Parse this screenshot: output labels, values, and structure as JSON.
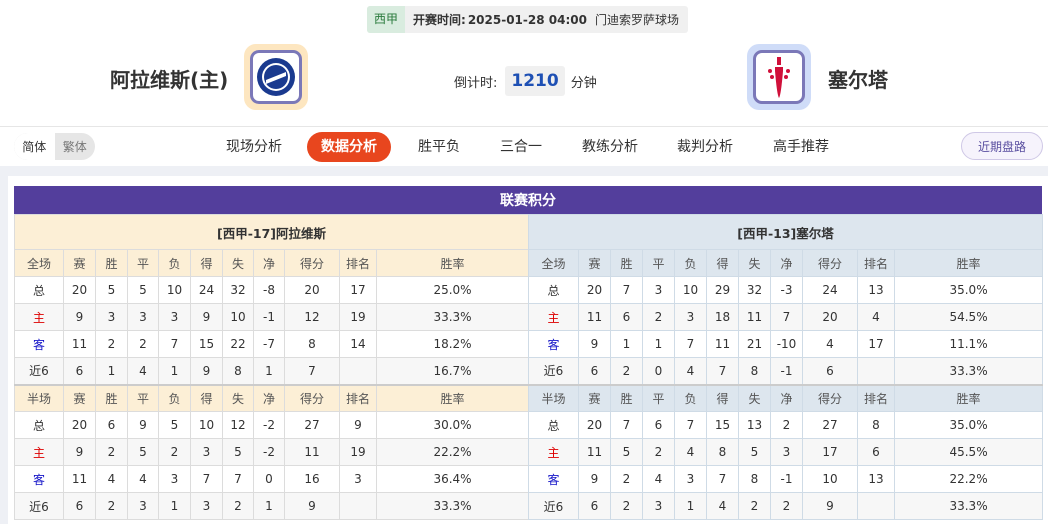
{
  "match": {
    "league": "西甲",
    "kickoff_label": "开赛时间:",
    "kickoff": "2025-01-28 04:00",
    "stadium": "门迪索罗萨球场",
    "home": "阿拉维斯(主)",
    "away": "塞尔塔",
    "countdown_label": "倒计时:",
    "countdown": "1210",
    "countdown_unit": "分钟"
  },
  "lang": {
    "simplified": "简体",
    "traditional": "繁体"
  },
  "tabs": [
    "现场分析",
    "数据分析",
    "胜平负",
    "三合一",
    "教练分析",
    "裁判分析",
    "高手推荐"
  ],
  "active_tab": "数据分析",
  "recent_button": "近期盘路",
  "standings": {
    "title": "联赛积分",
    "headers_full": [
      "全场",
      "赛",
      "胜",
      "平",
      "负",
      "得",
      "失",
      "净",
      "得分",
      "排名",
      "胜率"
    ],
    "headers_half": [
      "半场",
      "赛",
      "胜",
      "平",
      "负",
      "得",
      "失",
      "净",
      "得分",
      "排名",
      "胜率"
    ],
    "home": {
      "team": "[西甲-17]阿拉维斯",
      "full": [
        [
          "总",
          "20",
          "5",
          "5",
          "10",
          "24",
          "32",
          "-8",
          "20",
          "17",
          "25.0%"
        ],
        [
          "主",
          "9",
          "3",
          "3",
          "3",
          "9",
          "10",
          "-1",
          "12",
          "19",
          "33.3%"
        ],
        [
          "客",
          "11",
          "2",
          "2",
          "7",
          "15",
          "22",
          "-7",
          "8",
          "14",
          "18.2%"
        ],
        [
          "近6",
          "6",
          "1",
          "4",
          "1",
          "9",
          "8",
          "1",
          "7",
          "",
          "16.7%"
        ]
      ],
      "half": [
        [
          "总",
          "20",
          "6",
          "9",
          "5",
          "10",
          "12",
          "-2",
          "27",
          "9",
          "30.0%"
        ],
        [
          "主",
          "9",
          "2",
          "5",
          "2",
          "3",
          "5",
          "-2",
          "11",
          "19",
          "22.2%"
        ],
        [
          "客",
          "11",
          "4",
          "4",
          "3",
          "7",
          "7",
          "0",
          "16",
          "3",
          "36.4%"
        ],
        [
          "近6",
          "6",
          "2",
          "3",
          "1",
          "3",
          "2",
          "1",
          "9",
          "",
          "33.3%"
        ]
      ]
    },
    "away": {
      "team": "[西甲-13]塞尔塔",
      "full": [
        [
          "总",
          "20",
          "7",
          "3",
          "10",
          "29",
          "32",
          "-3",
          "24",
          "13",
          "35.0%"
        ],
        [
          "主",
          "11",
          "6",
          "2",
          "3",
          "18",
          "11",
          "7",
          "20",
          "4",
          "54.5%"
        ],
        [
          "客",
          "9",
          "1",
          "1",
          "7",
          "11",
          "21",
          "-10",
          "4",
          "17",
          "11.1%"
        ],
        [
          "近6",
          "6",
          "2",
          "0",
          "4",
          "7",
          "8",
          "-1",
          "6",
          "",
          "33.3%"
        ]
      ],
      "half": [
        [
          "总",
          "20",
          "7",
          "6",
          "7",
          "15",
          "13",
          "2",
          "27",
          "8",
          "35.0%"
        ],
        [
          "主",
          "11",
          "5",
          "2",
          "4",
          "8",
          "5",
          "3",
          "17",
          "6",
          "45.5%"
        ],
        [
          "客",
          "9",
          "2",
          "4",
          "3",
          "7",
          "8",
          "-1",
          "10",
          "13",
          "22.2%"
        ],
        [
          "近6",
          "6",
          "2",
          "3",
          "1",
          "4",
          "2",
          "2",
          "9",
          "",
          "33.3%"
        ]
      ]
    }
  },
  "colors": {
    "title_bar": "#533e9c",
    "active_tab": "#e8461e",
    "home_label": "#dd0000",
    "away_label": "#1515c8",
    "countdown": "#1e50b4"
  }
}
